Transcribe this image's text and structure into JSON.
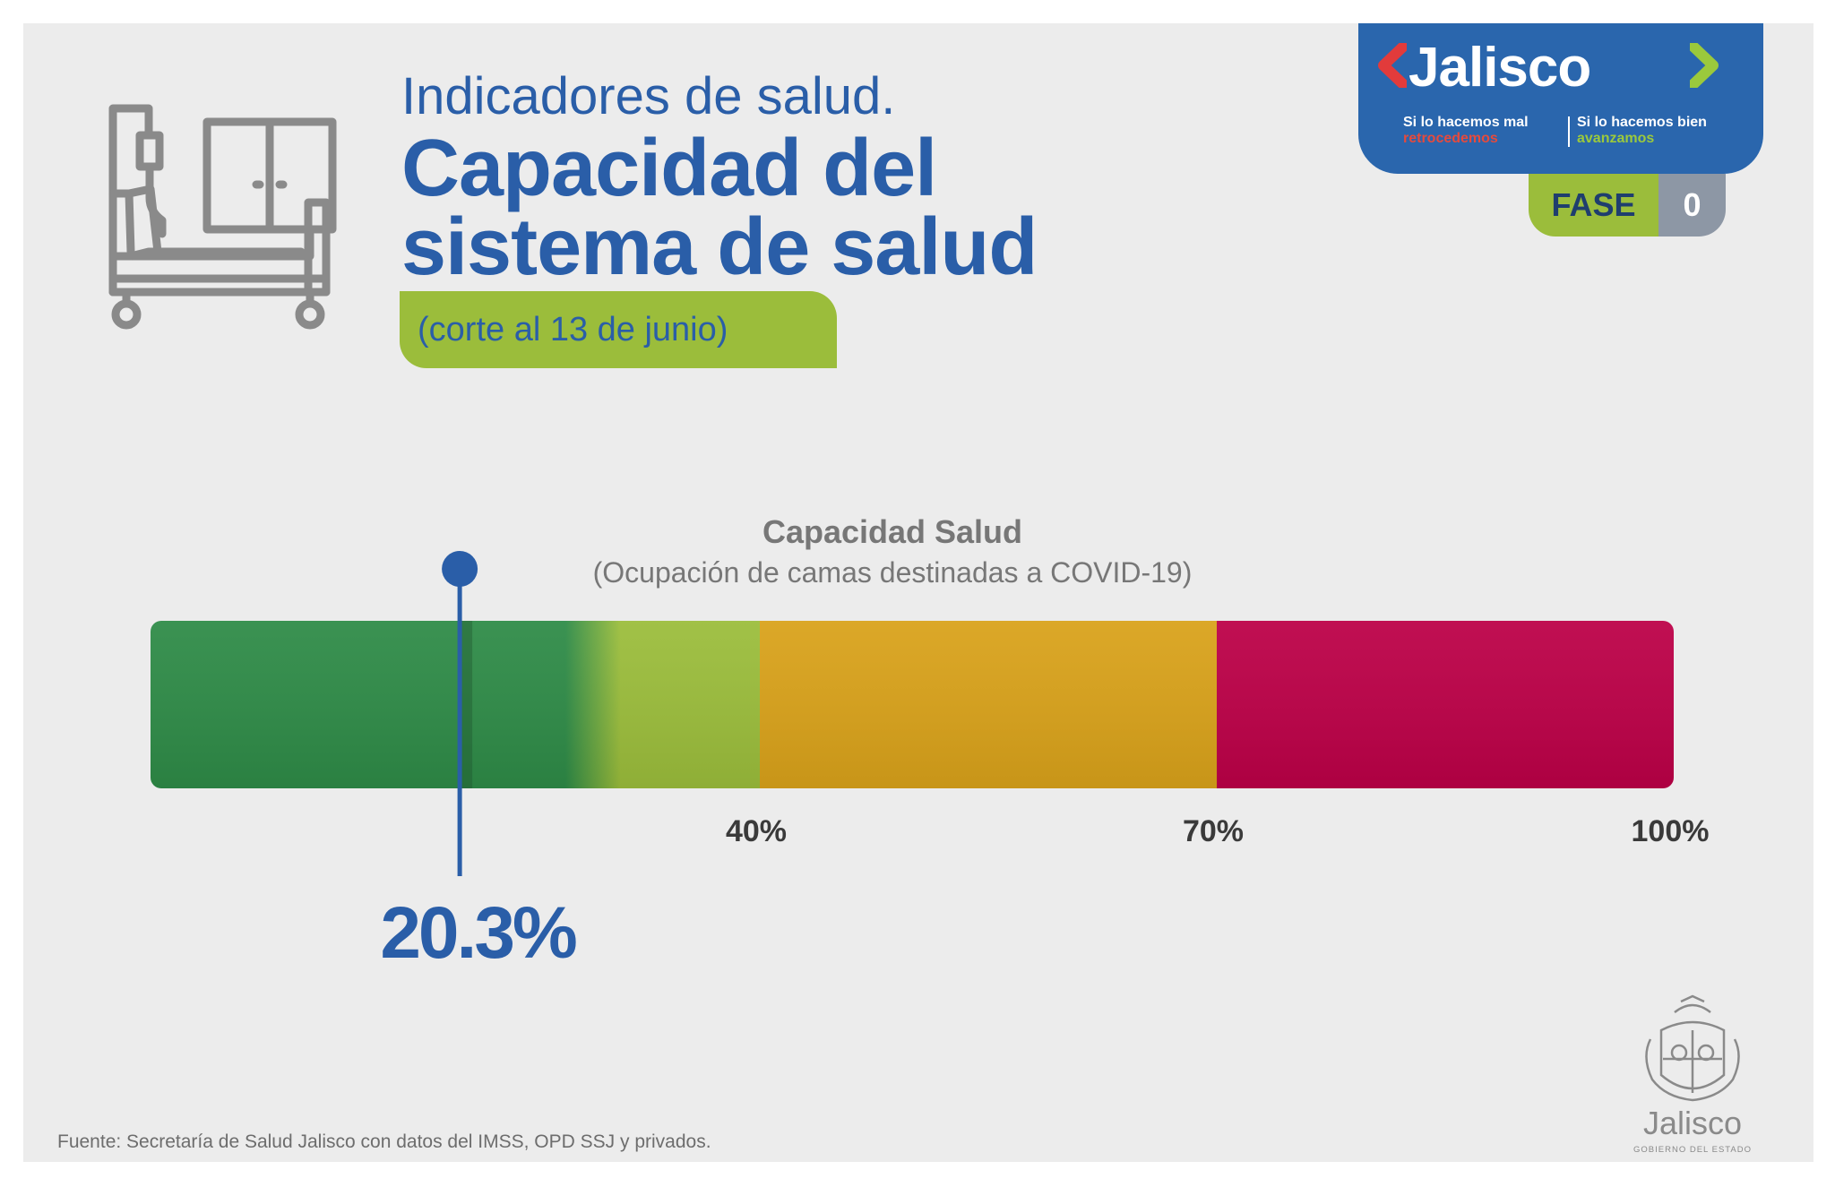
{
  "header": {
    "subtitle": "Indicadores de salud.",
    "title_line1": "Capacidad del",
    "title_line2": "sistema de salud",
    "date_note": "(corte al 13 de junio)"
  },
  "icons": {
    "bed": "hospital-bed-icon"
  },
  "logo": {
    "brand": "Jalisco",
    "tag_left_top": "Si lo hacemos mal",
    "tag_left_bottom": "retrocedemos",
    "tag_right_top": "Si lo hacemos bien",
    "tag_right_bottom": "avanzamos",
    "phase_label": "FASE",
    "phase_value": "0"
  },
  "chart_data": {
    "type": "bar",
    "title": "Capacidad Salud",
    "subtitle": "(Ocupación de camas destinadas a COVID-19)",
    "xlim": [
      0,
      100
    ],
    "segments": [
      {
        "from": 0,
        "to": 40,
        "color": "#9bbd3b",
        "start_color": "#2e8b47"
      },
      {
        "from": 40,
        "to": 70,
        "color": "#d9a21a"
      },
      {
        "from": 70,
        "to": 100,
        "color": "#bc0047"
      }
    ],
    "ticks": [
      {
        "value": 40,
        "label": "40%"
      },
      {
        "value": 70,
        "label": "70%"
      },
      {
        "value": 100,
        "label": "100%"
      }
    ],
    "marker": {
      "value": 20.3,
      "label": "20.3%",
      "color": "#2a5ea8"
    }
  },
  "footer": {
    "source": "Fuente: Secretaría de Salud Jalisco con datos del IMSS, OPD SSJ y privados.",
    "gov_name": "Jalisco",
    "gov_sub": "GOBIERNO DEL ESTADO"
  }
}
